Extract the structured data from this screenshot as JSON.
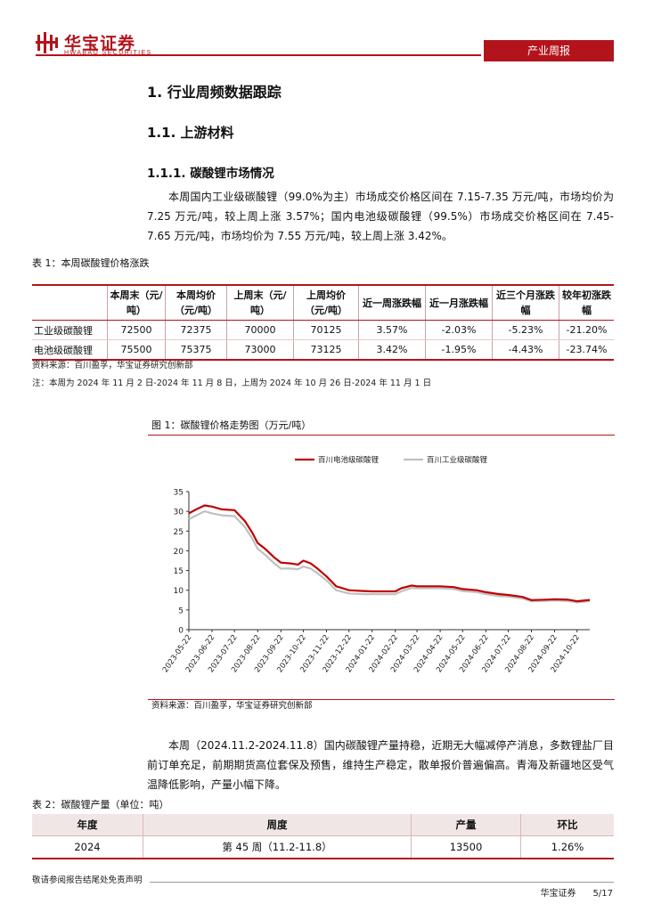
{
  "header": {
    "logo_cn": "华宝证券",
    "logo_en": "HWABAO SECURITIES",
    "badge": "产业周报",
    "colors": {
      "brand": "#b3141b"
    }
  },
  "headings": {
    "h1": "1. 行业周频数据跟踪",
    "h2": "1.1. 上游材料",
    "h3": "1.1.1. 碳酸锂市场情况"
  },
  "para1": "本周国内工业级碳酸锂（99.0%为主）市场成交价格区间在 7.15-7.35 万元/吨，市场均价为 7.25 万元/吨，较上周上涨 3.57%；国内电池级碳酸锂（99.5%）市场成交价格区间在 7.45-7.65 万元/吨，市场均价为 7.55 万元/吨，较上周上涨 3.42%。",
  "table1": {
    "caption": "表 1：本周碳酸锂价格涨跌",
    "headers": [
      "",
      "本周末（元/吨）",
      "本周均价（元/吨）",
      "上周末（元/吨）",
      "上周均价（元/吨）",
      "近一周涨跌幅",
      "近一月涨跌幅",
      "近三个月涨跌幅",
      "较年初涨跌幅"
    ],
    "rows": [
      [
        "工业级碳酸锂",
        "72500",
        "72375",
        "70000",
        "70125",
        "3.57%",
        "-2.03%",
        "-5.23%",
        "-21.20%"
      ],
      [
        "电池级碳酸锂",
        "75500",
        "75375",
        "73000",
        "73125",
        "3.42%",
        "-1.95%",
        "-4.43%",
        "-23.74%"
      ]
    ],
    "source": "资料来源：百川盈孚，华宝证券研究创新部",
    "note": "注：本周为 2024 年 11 月 2 日-2024 年 11 月 8 日，上周为 2024 年 10 月 26 日-2024 年 11 月 1 日"
  },
  "figure1": {
    "caption": "图 1：碳酸锂价格走势图（万元/吨）",
    "source": "资料来源：百川盈孚，华宝证券研究创新部"
  },
  "chart_data": {
    "type": "line",
    "title": "",
    "xlabel": "",
    "ylabel": "",
    "ylim": [
      0,
      35
    ],
    "yticks": [
      0,
      5,
      10,
      15,
      20,
      25,
      30,
      35
    ],
    "xticks": [
      "2023-05-22",
      "2023-06-22",
      "2023-07-22",
      "2023-08-22",
      "2023-09-22",
      "2023-10-22",
      "2023-11-22",
      "2023-12-22",
      "2024-01-22",
      "2024-02-22",
      "2024-03-22",
      "2024-04-22",
      "2024-05-22",
      "2024-06-22",
      "2024-07-22",
      "2024-08-22",
      "2024-09-22",
      "2024-10-22"
    ],
    "legend_position": "top",
    "series": [
      {
        "name": "百川电池级碳酸锂",
        "color": "#c00000",
        "x": [
          "2023-05-22",
          "2023-06-01",
          "2023-06-12",
          "2023-06-22",
          "2023-07-05",
          "2023-07-22",
          "2023-08-05",
          "2023-08-15",
          "2023-08-22",
          "2023-09-01",
          "2023-09-12",
          "2023-09-22",
          "2023-10-05",
          "2023-10-15",
          "2023-10-22",
          "2023-11-01",
          "2023-11-10",
          "2023-11-22",
          "2023-12-05",
          "2023-12-22",
          "2024-01-10",
          "2024-01-22",
          "2024-02-22",
          "2024-03-01",
          "2024-03-15",
          "2024-03-22",
          "2024-04-10",
          "2024-04-22",
          "2024-05-10",
          "2024-05-22",
          "2024-06-10",
          "2024-06-22",
          "2024-07-10",
          "2024-07-22",
          "2024-08-10",
          "2024-08-22",
          "2024-09-10",
          "2024-09-22",
          "2024-10-10",
          "2024-10-22",
          "2024-11-08"
        ],
        "values": [
          29.5,
          30.5,
          31.5,
          31.2,
          30.5,
          30.3,
          27.5,
          24.5,
          22.0,
          20.5,
          18.5,
          17.0,
          16.8,
          16.5,
          17.5,
          16.8,
          15.5,
          13.5,
          11.0,
          10.0,
          9.8,
          9.7,
          9.7,
          10.5,
          11.2,
          11.0,
          11.0,
          11.0,
          10.8,
          10.3,
          10.0,
          9.5,
          9.0,
          8.8,
          8.3,
          7.5,
          7.6,
          7.7,
          7.6,
          7.2,
          7.55
        ]
      },
      {
        "name": "百川工业级碳酸锂",
        "color": "#c0c0c0",
        "x": [
          "2023-05-22",
          "2023-06-01",
          "2023-06-12",
          "2023-06-22",
          "2023-07-05",
          "2023-07-22",
          "2023-08-05",
          "2023-08-15",
          "2023-08-22",
          "2023-09-01",
          "2023-09-12",
          "2023-09-22",
          "2023-10-05",
          "2023-10-15",
          "2023-10-22",
          "2023-11-01",
          "2023-11-10",
          "2023-11-22",
          "2023-12-05",
          "2023-12-22",
          "2024-01-10",
          "2024-01-22",
          "2024-02-22",
          "2024-03-01",
          "2024-03-15",
          "2024-03-22",
          "2024-04-10",
          "2024-04-22",
          "2024-05-10",
          "2024-05-22",
          "2024-06-10",
          "2024-06-22",
          "2024-07-10",
          "2024-07-22",
          "2024-08-10",
          "2024-08-22",
          "2024-09-10",
          "2024-09-22",
          "2024-10-10",
          "2024-10-22",
          "2024-11-08"
        ],
        "values": [
          28.0,
          29.0,
          30.0,
          29.5,
          29.0,
          28.8,
          26.0,
          23.0,
          20.5,
          19.0,
          17.0,
          15.5,
          15.5,
          15.3,
          16.0,
          15.5,
          14.3,
          12.5,
          10.0,
          9.2,
          9.0,
          9.0,
          9.0,
          9.7,
          10.6,
          10.5,
          10.5,
          10.5,
          10.3,
          9.8,
          9.5,
          9.0,
          8.5,
          8.4,
          7.9,
          7.2,
          7.3,
          7.4,
          7.3,
          6.9,
          7.25
        ]
      }
    ]
  },
  "para2": "本周（2024.11.2-2024.11.8）国内碳酸锂产量持稳，近期无大幅减停产消息，多数锂盐厂目前订单充足，前期期货高位套保及预售，维持生产稳定，散单报价普遍偏高。青海及新疆地区受气温降低影响，产量小幅下降。",
  "table2": {
    "caption": "表 2：碳酸锂产量（单位：吨）",
    "headers": [
      "年度",
      "周度",
      "产量",
      "环比"
    ],
    "rows": [
      [
        "2024",
        "第 45 周（11.2-11.8）",
        "13500",
        "1.26%"
      ]
    ]
  },
  "footer": {
    "disclaimer": "敬请参阅报告结尾处免责声明",
    "company": "华宝证券",
    "page": "5/17"
  }
}
